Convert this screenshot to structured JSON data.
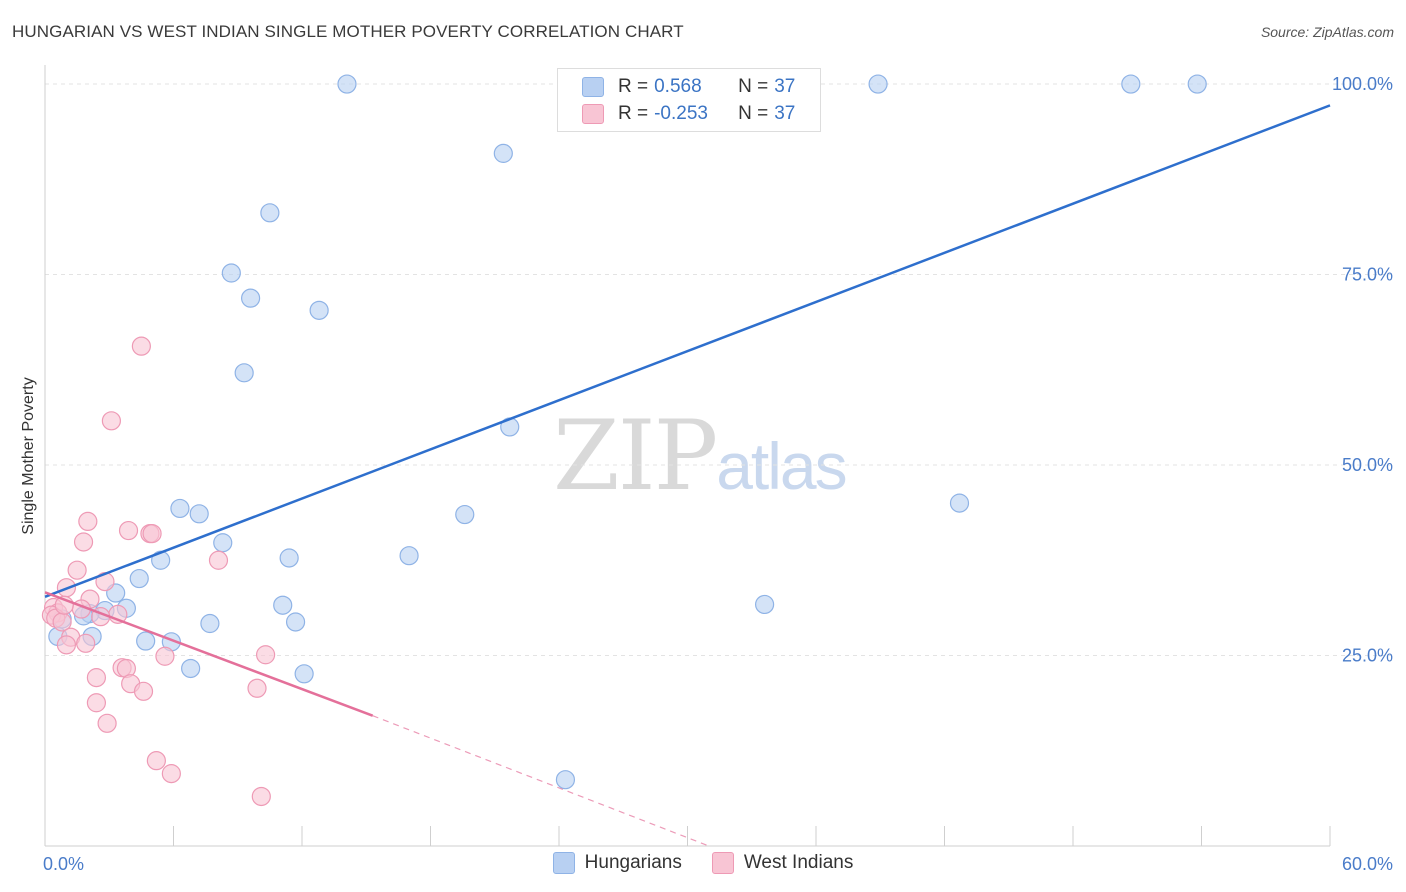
{
  "header": {
    "title": "HUNGARIAN VS WEST INDIAN SINGLE MOTHER POVERTY CORRELATION CHART",
    "source": "Source: ZipAtlas.com"
  },
  "watermark": {
    "zip": "ZIP",
    "atlas": "atlas"
  },
  "legend": {
    "rows": [
      {
        "r_label": "R =",
        "r_value": "0.568",
        "n_label": "N =",
        "n_value": "37"
      },
      {
        "r_label": "R =",
        "r_value": "-0.253",
        "n_label": "N =",
        "n_value": "37"
      }
    ]
  },
  "bottom_legend": [
    "Hungarians",
    "West Indians"
  ],
  "colors": {
    "blue_fill": "#b8d0f2",
    "blue_stroke": "#8fb3e6",
    "blue_line": "#2e6fcd",
    "pink_fill": "#f8c5d4",
    "pink_stroke": "#ee9ab5",
    "pink_line": "#e4709a",
    "axis_text": "#4a7cc9",
    "grid": "#e3e3e3"
  },
  "chart_data": {
    "type": "scatter",
    "title": "HUNGARIAN VS WEST INDIAN SINGLE MOTHER POVERTY CORRELATION CHART",
    "xlabel": "",
    "ylabel": "Single Mother Poverty",
    "xlim": [
      0,
      60
    ],
    "ylim": [
      0,
      102.5
    ],
    "x_tick_labels": [
      "0.0%",
      "60.0%"
    ],
    "y_ticks": [
      25,
      50,
      75,
      100
    ],
    "y_tick_labels": [
      "25.0%",
      "50.0%",
      "75.0%",
      "100.0%"
    ],
    "grid": true,
    "series": [
      {
        "name": "Hungarians",
        "r": 0.568,
        "n": 37,
        "trend": {
          "x": [
            0,
            60
          ],
          "y": [
            32.7,
            97.2
          ]
        },
        "points": [
          [
            14.1,
            100
          ],
          [
            38.9,
            100
          ],
          [
            50.7,
            100
          ],
          [
            53.8,
            100
          ],
          [
            21.4,
            90.9
          ],
          [
            10.5,
            83.1
          ],
          [
            8.7,
            75.2
          ],
          [
            9.6,
            71.9
          ],
          [
            12.8,
            70.3
          ],
          [
            9.3,
            62.1
          ],
          [
            21.7,
            55.0
          ],
          [
            42.7,
            45.0
          ],
          [
            6.3,
            44.3
          ],
          [
            7.2,
            43.6
          ],
          [
            19.6,
            43.5
          ],
          [
            8.3,
            39.8
          ],
          [
            17.0,
            38.1
          ],
          [
            11.4,
            37.8
          ],
          [
            5.4,
            37.5
          ],
          [
            4.4,
            35.1
          ],
          [
            3.3,
            33.2
          ],
          [
            3.8,
            31.2
          ],
          [
            2.8,
            30.9
          ],
          [
            2.1,
            30.5
          ],
          [
            1.8,
            30.2
          ],
          [
            11.1,
            31.6
          ],
          [
            33.6,
            31.7
          ],
          [
            7.7,
            29.2
          ],
          [
            11.7,
            29.4
          ],
          [
            0.8,
            29.8
          ],
          [
            0.6,
            27.5
          ],
          [
            2.2,
            27.5
          ],
          [
            4.7,
            26.9
          ],
          [
            5.9,
            26.8
          ],
          [
            6.8,
            23.3
          ],
          [
            12.1,
            22.6
          ],
          [
            24.3,
            8.7
          ]
        ]
      },
      {
        "name": "West Indians",
        "r": -0.253,
        "n": 37,
        "trend": {
          "x": [
            0,
            15.3
          ],
          "y": [
            33.3,
            17.1
          ]
        },
        "trend_dashed": {
          "x": [
            15.3,
            31.0
          ],
          "y": [
            17.1,
            0
          ]
        },
        "points": [
          [
            4.5,
            65.6
          ],
          [
            3.1,
            55.8
          ],
          [
            2.0,
            42.6
          ],
          [
            3.9,
            41.4
          ],
          [
            4.9,
            41.0
          ],
          [
            5.0,
            41.0
          ],
          [
            1.8,
            39.9
          ],
          [
            8.1,
            37.5
          ],
          [
            1.5,
            36.2
          ],
          [
            2.8,
            34.7
          ],
          [
            1.0,
            33.9
          ],
          [
            2.1,
            32.4
          ],
          [
            0.4,
            31.3
          ],
          [
            1.7,
            31.1
          ],
          [
            0.6,
            30.6
          ],
          [
            3.4,
            30.4
          ],
          [
            2.6,
            30.1
          ],
          [
            0.3,
            30.3
          ],
          [
            0.5,
            29.9
          ],
          [
            0.8,
            29.4
          ],
          [
            1.2,
            27.4
          ],
          [
            1.9,
            26.6
          ],
          [
            1.0,
            26.4
          ],
          [
            10.3,
            25.1
          ],
          [
            5.6,
            24.9
          ],
          [
            3.6,
            23.4
          ],
          [
            3.8,
            23.3
          ],
          [
            2.4,
            22.1
          ],
          [
            4.0,
            21.3
          ],
          [
            9.9,
            20.7
          ],
          [
            4.6,
            20.3
          ],
          [
            2.4,
            18.8
          ],
          [
            2.9,
            16.1
          ],
          [
            5.2,
            11.2
          ],
          [
            5.9,
            9.5
          ],
          [
            10.1,
            6.5
          ],
          [
            0.9,
            31.6
          ]
        ]
      }
    ]
  }
}
